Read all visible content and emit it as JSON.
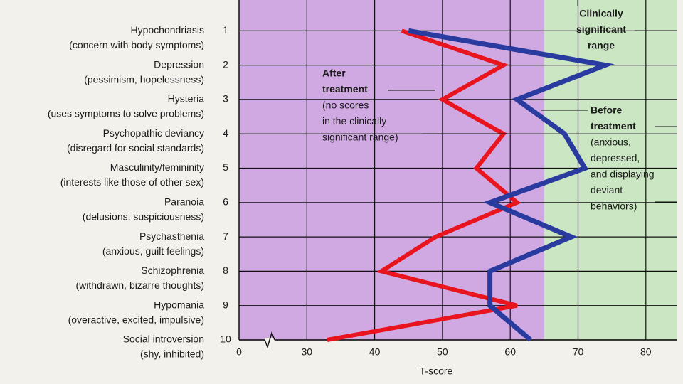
{
  "chart_data": {
    "type": "line",
    "categories": [
      {
        "name": "Hypochondriasis",
        "description": "(concern with body symptoms)"
      },
      {
        "name": "Depression",
        "description": "(pessimism, hopelessness)"
      },
      {
        "name": "Hysteria",
        "description": "(uses symptoms to solve problems)"
      },
      {
        "name": "Psychopathic deviancy",
        "description": "(disregard for social standards)"
      },
      {
        "name": "Masculinity/femininity",
        "description": "(interests like those of other sex)"
      },
      {
        "name": "Paranoia",
        "description": "(delusions, suspiciousness)"
      },
      {
        "name": "Psychasthenia",
        "description": "(anxious, guilt feelings)"
      },
      {
        "name": "Schizophrenia",
        "description": "(withdrawn, bizarre thoughts)"
      },
      {
        "name": "Hypomania",
        "description": "(overactive, excited, impulsive)"
      },
      {
        "name": "Social introversion",
        "description": "(shy, inhibited)"
      }
    ],
    "yticks": [
      1,
      2,
      3,
      4,
      5,
      6,
      7,
      8,
      9,
      10
    ],
    "xlabel": "T-score",
    "xlim": [
      0,
      85
    ],
    "xticks": [
      0,
      30,
      40,
      50,
      60,
      70,
      80
    ],
    "axis_break": true,
    "grid": true,
    "regions": [
      {
        "range": [
          0,
          65
        ],
        "color": "#d0a9e3"
      },
      {
        "range": [
          65,
          85
        ],
        "color": "#cbe6c3"
      }
    ],
    "series": [
      {
        "name": "After treatment",
        "color": "#e8141e",
        "values": [
          44,
          59,
          50,
          59,
          55,
          61,
          49,
          41,
          61,
          33
        ]
      },
      {
        "name": "Before treatment",
        "color": "#2a3b9f",
        "values": [
          45,
          74,
          61,
          68,
          71,
          57,
          69,
          57,
          57,
          63
        ]
      }
    ],
    "annotations": [
      {
        "heading": [
          "Clinically",
          "significant",
          "range"
        ],
        "text": []
      },
      {
        "heading": [
          "After",
          "treatment"
        ],
        "text": [
          "(no scores",
          "in the clinically",
          "significant range)"
        ]
      },
      {
        "heading": [
          "Before",
          "treatment"
        ],
        "text": [
          "(anxious,",
          "depressed,",
          "and displaying",
          "deviant",
          "behaviors)"
        ]
      }
    ]
  }
}
